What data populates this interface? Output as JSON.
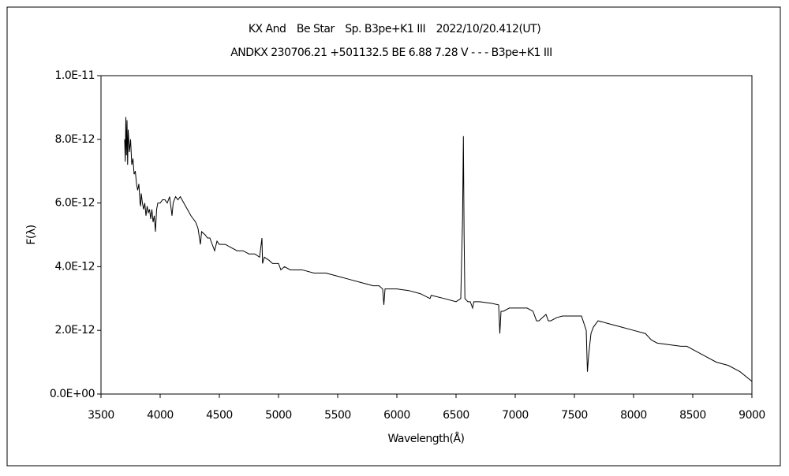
{
  "chart_data": {
    "type": "line",
    "title": "KX And　Be Star　Sp. B3pe+K1 III　2022/10/20.412(UT)",
    "subtitle": "ANDKX 230706.21 +501132.5 BE 6.88 7.28 V - - - B3pe+K1 III",
    "x_label": "Wavelength(Å)",
    "y_label": "F(λ)",
    "color": "#000000",
    "xlim": [
      3500,
      9000
    ],
    "xticks": [
      3500,
      4000,
      4500,
      5000,
      5500,
      6000,
      6500,
      7000,
      7500,
      8000,
      8500,
      9000
    ],
    "ylim": [
      0,
      1e-11
    ],
    "yticks": [
      {
        "value": 0,
        "label": "0.0E+00"
      },
      {
        "value": 2e-12,
        "label": "2.0E-12"
      },
      {
        "value": 4e-12,
        "label": "4.0E-12"
      },
      {
        "value": 6e-12,
        "label": "6.0E-12"
      },
      {
        "value": 8e-12,
        "label": "8.0E-12"
      },
      {
        "value": 1e-11,
        "label": "1.0E-11"
      }
    ],
    "x": [
      3700,
      3705,
      3710,
      3715,
      3720,
      3725,
      3730,
      3740,
      3750,
      3760,
      3770,
      3780,
      3790,
      3800,
      3810,
      3820,
      3830,
      3835,
      3840,
      3850,
      3860,
      3870,
      3880,
      3890,
      3900,
      3910,
      3920,
      3930,
      3940,
      3950,
      3960,
      3970,
      3980,
      4000,
      4020,
      4040,
      4060,
      4080,
      4100,
      4110,
      4130,
      4150,
      4170,
      4200,
      4230,
      4260,
      4300,
      4320,
      4340,
      4350,
      4380,
      4400,
      4420,
      4440,
      4460,
      4480,
      4500,
      4550,
      4600,
      4650,
      4700,
      4750,
      4800,
      4840,
      4860,
      4865,
      4880,
      4920,
      4950,
      5000,
      5020,
      5050,
      5100,
      5200,
      5300,
      5400,
      5500,
      5600,
      5700,
      5800,
      5850,
      5880,
      5890,
      5900,
      5950,
      6000,
      6100,
      6200,
      6280,
      6290,
      6400,
      6500,
      6540,
      6555,
      6562,
      6568,
      6575,
      6600,
      6620,
      6640,
      6650,
      6700,
      6800,
      6860,
      6870,
      6880,
      6900,
      6950,
      7000,
      7100,
      7150,
      7180,
      7200,
      7230,
      7260,
      7280,
      7300,
      7350,
      7400,
      7500,
      7560,
      7600,
      7610,
      7620,
      7640,
      7660,
      7700,
      7800,
      7900,
      8000,
      8100,
      8150,
      8200,
      8300,
      8400,
      8450,
      8500,
      8600,
      8700,
      8800,
      8900,
      9000
    ],
    "values": [
      8e-12,
      7.3e-12,
      8.7e-12,
      7.5e-12,
      8.6e-12,
      7.2e-12,
      8.3e-12,
      7.6e-12,
      8e-12,
      7.2e-12,
      7.4e-12,
      6.9e-12,
      7e-12,
      6.6e-12,
      6.4e-12,
      6.6e-12,
      6e-12,
      5.9e-12,
      6.3e-12,
      6e-12,
      5.8e-12,
      6e-12,
      5.6e-12,
      5.9e-12,
      5.7e-12,
      5.8e-12,
      5.5e-12,
      5.8e-12,
      5.4e-12,
      5.6e-12,
      5.1e-12,
      5.8e-12,
      6e-12,
      6e-12,
      6.1e-12,
      6.1e-12,
      6e-12,
      6.2e-12,
      5.6e-12,
      6e-12,
      6.2e-12,
      6.1e-12,
      6.2e-12,
      6e-12,
      5.8e-12,
      5.6e-12,
      5.4e-12,
      5.2e-12,
      4.7e-12,
      5.1e-12,
      5e-12,
      4.9e-12,
      4.9e-12,
      4.7e-12,
      4.5e-12,
      4.8e-12,
      4.7e-12,
      4.7e-12,
      4.6e-12,
      4.5e-12,
      4.5e-12,
      4.4e-12,
      4.4e-12,
      4.3e-12,
      4.9e-12,
      4.1e-12,
      4.3e-12,
      4.2e-12,
      4.1e-12,
      4.1e-12,
      3.9e-12,
      4e-12,
      3.9e-12,
      3.9e-12,
      3.8e-12,
      3.8e-12,
      3.7e-12,
      3.6e-12,
      3.5e-12,
      3.4e-12,
      3.4e-12,
      3.3e-12,
      2.8e-12,
      3.3e-12,
      3.3e-12,
      3.3e-12,
      3.25e-12,
      3.15e-12,
      3e-12,
      3.1e-12,
      3e-12,
      2.9e-12,
      3e-12,
      5.5e-12,
      8.1e-12,
      5e-12,
      3e-12,
      2.9e-12,
      2.9e-12,
      2.7e-12,
      2.9e-12,
      2.9e-12,
      2.85e-12,
      2.8e-12,
      1.9e-12,
      2.6e-12,
      2.6e-12,
      2.7e-12,
      2.7e-12,
      2.7e-12,
      2.6e-12,
      2.3e-12,
      2.3e-12,
      2.4e-12,
      2.5e-12,
      2.3e-12,
      2.3e-12,
      2.4e-12,
      2.45e-12,
      2.45e-12,
      2.45e-12,
      2e-12,
      7e-13,
      1.2e-12,
      1.9e-12,
      2.1e-12,
      2.3e-12,
      2.2e-12,
      2.1e-12,
      2e-12,
      1.9e-12,
      1.7e-12,
      1.6e-12,
      1.55e-12,
      1.5e-12,
      1.5e-12,
      1.4e-12,
      1.2e-12,
      1e-12,
      9e-13,
      7e-13,
      4e-13
    ]
  }
}
